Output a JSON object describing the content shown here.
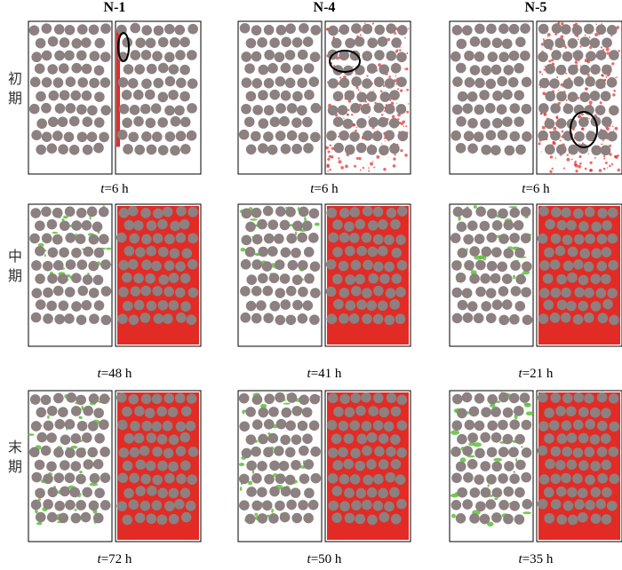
{
  "columns": [
    "N-1",
    "N-4",
    "N-5"
  ],
  "rows": [
    "初期",
    "中期",
    "末期"
  ],
  "time_symbol": "t",
  "times": [
    [
      "=6 h",
      "=6 h",
      "=6 h"
    ],
    [
      "=48 h",
      "=41 h",
      "=21 h"
    ],
    [
      "=72 h",
      "=50 h",
      "=35 h"
    ]
  ]
}
